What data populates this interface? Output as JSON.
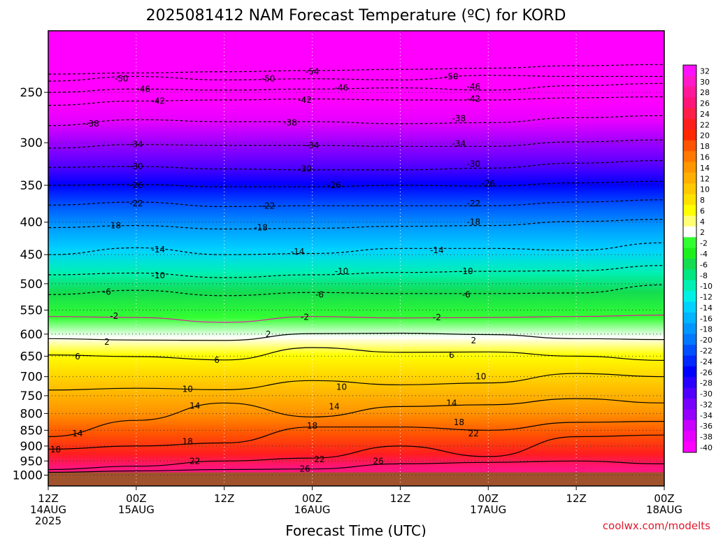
{
  "chart_data": {
    "type": "heatmap",
    "title": "2025081412 NAM Forecast Temperature (ºC) for KORD",
    "xlabel": "Forecast Time (UTC)",
    "ylabel": "",
    "y_axis": {
      "scale": "pressure",
      "ylim": [
        1040,
        200
      ],
      "ticks": [
        250,
        300,
        350,
        400,
        450,
        500,
        550,
        600,
        650,
        700,
        750,
        800,
        850,
        900,
        950,
        1000
      ]
    },
    "x_axis": {
      "xlim": [
        0,
        84
      ],
      "ticks": [
        {
          "hour": 0,
          "lines": [
            "12Z",
            "14AUG",
            "2025"
          ]
        },
        {
          "hour": 12,
          "lines": [
            "00Z",
            "15AUG"
          ]
        },
        {
          "hour": 24,
          "lines": [
            "12Z"
          ]
        },
        {
          "hour": 36,
          "lines": [
            "00Z",
            "16AUG"
          ]
        },
        {
          "hour": 48,
          "lines": [
            "12Z"
          ]
        },
        {
          "hour": 60,
          "lines": [
            "00Z",
            "17AUG"
          ]
        },
        {
          "hour": 72,
          "lines": [
            "12Z"
          ]
        },
        {
          "hour": 84,
          "lines": [
            "00Z",
            "18AUG"
          ]
        }
      ]
    },
    "grid": true,
    "legend": "right",
    "ground_level_hpa": 990,
    "colorbar": {
      "levels": [
        "32",
        "30",
        "28",
        "26",
        "24",
        "22",
        "20",
        "18",
        "16",
        "14",
        "12",
        "10",
        "8",
        "6",
        "4",
        "2",
        "-2",
        "-4",
        "-6",
        "-8",
        "-10",
        "-12",
        "-14",
        "-16",
        "-18",
        "-20",
        "-22",
        "-24",
        "-26",
        "-28",
        "-30",
        "-32",
        "-34",
        "-36",
        "-38",
        "-40"
      ],
      "colors": [
        "#ff10ff",
        "#ff19c8",
        "#ff1999",
        "#ff1478",
        "#ff1e46",
        "#ff1e1e",
        "#ff2800",
        "#ff5500",
        "#ff7800",
        "#ff9600",
        "#ffaf00",
        "#ffc800",
        "#ffe100",
        "#ffff00",
        "#ffff73",
        "#ffffff",
        "#32ff32",
        "#1ef01e",
        "#14dc50",
        "#00e682",
        "#00f0b4",
        "#00f0e6",
        "#00d2ff",
        "#00b4ff",
        "#0096ff",
        "#0078ff",
        "#0050ff",
        "#0028ff",
        "#0000ff",
        "#2800ff",
        "#5000ff",
        "#7800ff",
        "#9600ff",
        "#c800ff",
        "#e600ff",
        "#ff00ff"
      ]
    },
    "isotherms": [
      {
        "label": "-54",
        "temp": -54,
        "p": [
          234,
          233,
          232,
          231,
          230,
          229,
          227,
          226
        ],
        "labels_at": [
          [
            36,
            232
          ]
        ]
      },
      {
        "label": "-50",
        "temp": -50,
        "p": [
          240,
          236,
          239,
          238,
          239,
          235,
          236,
          236
        ],
        "labels_at": [
          [
            10,
            238
          ],
          [
            30,
            238
          ],
          [
            55,
            236
          ]
        ]
      },
      {
        "label": "-46",
        "temp": -46,
        "p": [
          250,
          247,
          248,
          247,
          246,
          248,
          244,
          242
        ],
        "labels_at": [
          [
            13,
            247
          ],
          [
            40,
            246
          ],
          [
            58,
            245
          ]
        ]
      },
      {
        "label": "-42",
        "temp": -42,
        "p": [
          262,
          258,
          257,
          256,
          257,
          257,
          255,
          254
        ],
        "labels_at": [
          [
            15,
            258
          ],
          [
            35,
            257
          ],
          [
            58,
            256
          ]
        ]
      },
      {
        "label": "-38",
        "temp": -38,
        "p": [
          282,
          276,
          278,
          278,
          280,
          279,
          274,
          272
        ],
        "labels_at": [
          [
            6,
            280
          ],
          [
            33,
            279
          ],
          [
            56,
            275
          ]
        ]
      },
      {
        "label": "-34",
        "temp": -34,
        "p": [
          306,
          302,
          303,
          303,
          304,
          304,
          299,
          297
        ],
        "labels_at": [
          [
            12,
            302
          ],
          [
            36,
            303
          ],
          [
            56,
            301
          ]
        ]
      },
      {
        "label": "-30",
        "temp": -30,
        "p": [
          328,
          327,
          330,
          331,
          331,
          329,
          323,
          320
        ],
        "labels_at": [
          [
            12,
            327
          ],
          [
            35,
            330
          ],
          [
            58,
            324
          ]
        ]
      },
      {
        "label": "-26",
        "temp": -26,
        "p": [
          350,
          349,
          352,
          352,
          350,
          351,
          347,
          345
        ],
        "labels_at": [
          [
            12,
            350
          ],
          [
            39,
            350
          ],
          [
            60,
            348
          ]
        ]
      },
      {
        "label": "-22",
        "temp": -22,
        "p": [
          376,
          372,
          378,
          377,
          377,
          377,
          372,
          369
        ],
        "labels_at": [
          [
            12,
            374
          ],
          [
            30,
            377
          ],
          [
            58,
            374
          ]
        ]
      },
      {
        "label": "-18",
        "temp": -18,
        "p": [
          408,
          405,
          410,
          409,
          406,
          405,
          399,
          396
        ],
        "labels_at": [
          [
            9,
            405
          ],
          [
            29,
            408
          ],
          [
            58,
            400
          ]
        ]
      },
      {
        "label": "-14",
        "temp": -14,
        "p": [
          450,
          439,
          450,
          448,
          440,
          440,
          443,
          431
        ],
        "labels_at": [
          [
            15,
            442
          ],
          [
            34,
            445
          ],
          [
            53,
            443
          ]
        ]
      },
      {
        "label": "-10",
        "temp": -10,
        "p": [
          484,
          481,
          489,
          484,
          480,
          478,
          477,
          468
        ],
        "labels_at": [
          [
            15,
            485
          ],
          [
            40,
            478
          ],
          [
            57,
            478
          ]
        ]
      },
      {
        "label": "-6",
        "temp": -6,
        "p": [
          520,
          512,
          522,
          516,
          518,
          518,
          517,
          502
        ],
        "labels_at": [
          [
            8,
            515
          ],
          [
            37,
            520
          ],
          [
            57,
            520
          ]
        ]
      },
      {
        "label": "-2",
        "temp": -2,
        "p": [
          563,
          565,
          575,
          563,
          566,
          565,
          563,
          560
        ],
        "labels_at": [
          [
            9,
            562
          ],
          [
            35,
            564
          ],
          [
            53,
            565
          ]
        ]
      },
      {
        "label": "2",
        "temp": 2,
        "p": [
          610,
          613,
          614,
          599,
          598,
          601,
          610,
          612
        ],
        "labels_at": [
          [
            8,
            617
          ],
          [
            30,
            600
          ],
          [
            58,
            614
          ]
        ]
      },
      {
        "label": "6",
        "temp": 6,
        "p": [
          647,
          651,
          659,
          630,
          641,
          640,
          650,
          660
        ],
        "labels_at": [
          [
            4,
            651
          ],
          [
            23,
            659
          ],
          [
            55,
            648
          ]
        ]
      },
      {
        "label": "10",
        "temp": 10,
        "p": [
          735,
          730,
          734,
          710,
          721,
          716,
          692,
          700
        ],
        "labels_at": [
          [
            19,
            732
          ],
          [
            40,
            727
          ],
          [
            59,
            700
          ]
        ]
      },
      {
        "label": "14",
        "temp": 14,
        "p": [
          870,
          820,
          770,
          810,
          780,
          775,
          758,
          770
        ],
        "labels_at": [
          [
            4,
            860
          ],
          [
            20,
            778
          ],
          [
            39,
            780
          ],
          [
            55,
            770
          ]
        ]
      },
      {
        "label": "18",
        "temp": 18,
        "p": [
          910,
          900,
          890,
          840,
          840,
          850,
          826,
          823
        ],
        "labels_at": [
          [
            1,
            912
          ],
          [
            19,
            886
          ],
          [
            36,
            836
          ],
          [
            56,
            826
          ]
        ]
      },
      {
        "label": "22",
        "temp": 22,
        "p": [
          980,
          968,
          950,
          940,
          900,
          935,
          870,
          865
        ],
        "labels_at": [
          [
            20,
            950
          ],
          [
            37,
            945
          ],
          [
            58,
            860
          ]
        ]
      },
      {
        "label": "26",
        "temp": 26,
        "p": [
          990,
          985,
          980,
          978,
          960,
          955,
          950,
          960
        ],
        "labels_at": [
          [
            35,
            978
          ],
          [
            45,
            950
          ]
        ]
      }
    ]
  }
}
